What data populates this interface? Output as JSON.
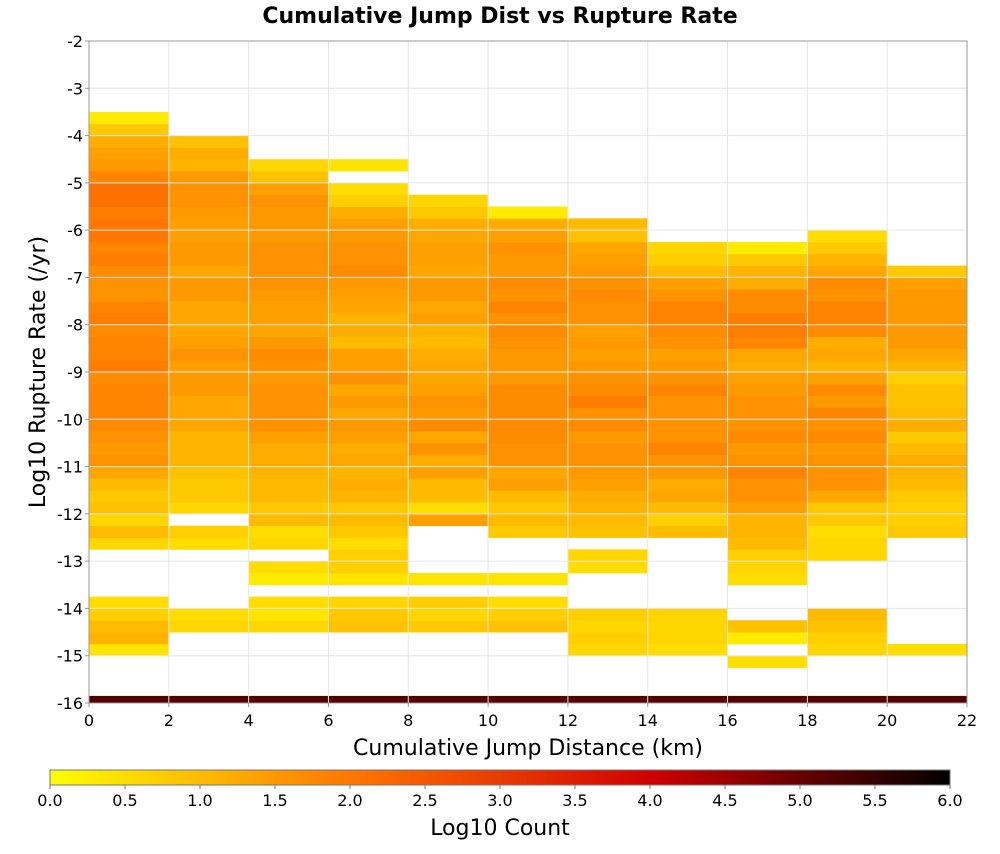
{
  "chart_data": {
    "type": "heatmap",
    "title": "Cumulative Jump Dist vs Rupture Rate",
    "xlabel": "Cumulative Jump Distance (km)",
    "ylabel": "Log10 Rupture Rate (/yr)",
    "xlim": [
      0,
      22
    ],
    "ylim": [
      -16,
      -2
    ],
    "x_ticks": [
      "0",
      "2",
      "4",
      "6",
      "8",
      "10",
      "12",
      "14",
      "16",
      "18",
      "20",
      "22"
    ],
    "y_ticks": [
      "-2",
      "-3",
      "-4",
      "-5",
      "-6",
      "-7",
      "-8",
      "-9",
      "-10",
      "-11",
      "-12",
      "-13",
      "-14",
      "-15",
      "-16"
    ],
    "grid": true,
    "x_bin_width": 2,
    "y_bin_height": 0.25,
    "colorbar": {
      "label": "Log10 Count",
      "range": [
        0,
        6
      ],
      "ticks": [
        "0.0",
        "0.5",
        "1.0",
        "1.5",
        "2.0",
        "2.5",
        "3.0",
        "3.5",
        "4.0",
        "4.5",
        "5.0",
        "5.5",
        "6.0"
      ],
      "colors": [
        "#ffff00",
        "#ff7700",
        "#d00000",
        "#000000"
      ]
    },
    "columns": [
      {
        "x_start": 0,
        "y_start": -15.0,
        "values": [
          0.4,
          1.1,
          1.0,
          0.7,
          0.5,
          null,
          null,
          null,
          null,
          0.6,
          1.0,
          0.6,
          0.9,
          0.8,
          1.0,
          1.3,
          1.6,
          1.5,
          1.6,
          1.7,
          1.8,
          1.8,
          1.8,
          1.7,
          1.9,
          1.8,
          1.8,
          1.7,
          1.9,
          1.8,
          1.6,
          1.6,
          1.7,
          1.9,
          1.8,
          2.0,
          2.0,
          1.9,
          2.1,
          2.1,
          1.8,
          1.5,
          1.4,
          1.2,
          0.8,
          0.3
        ]
      },
      {
        "x_start": 2,
        "y_start": -14.5,
        "values": [
          0.6,
          0.5,
          null,
          null,
          null,
          null,
          null,
          0.5,
          0.7,
          null,
          0.6,
          0.8,
          0.8,
          0.9,
          1.1,
          1.1,
          1.1,
          1.3,
          1.3,
          1.3,
          1.5,
          1.5,
          1.4,
          1.6,
          1.4,
          1.3,
          1.3,
          1.3,
          1.5,
          1.5,
          1.3,
          1.5,
          1.5,
          1.4,
          1.4,
          1.5,
          1.6,
          1.6,
          1.5,
          1.1,
          1.2,
          0.9
        ]
      },
      {
        "x_start": 4,
        "y_start": -14.5,
        "values": [
          0.6,
          0.4,
          0.5,
          null,
          0.3,
          0.5,
          null,
          0.6,
          0.5,
          1.0,
          0.8,
          1.0,
          1.0,
          1.1,
          1.2,
          1.2,
          1.4,
          1.6,
          1.6,
          1.6,
          1.6,
          1.5,
          1.6,
          1.7,
          1.5,
          1.3,
          1.4,
          1.4,
          1.5,
          1.6,
          1.6,
          1.6,
          1.6,
          1.5,
          1.5,
          1.5,
          1.6,
          1.4,
          0.9,
          0.6
        ]
      },
      {
        "x_start": 6,
        "y_start": -14.5,
        "values": [
          0.9,
          0.8,
          0.6,
          null,
          0.4,
          0.7,
          0.7,
          0.5,
          0.8,
          1.0,
          0.8,
          1.1,
          1.2,
          1.1,
          1.3,
          1.2,
          1.4,
          1.5,
          1.3,
          1.5,
          1.3,
          1.6,
          1.4,
          1.4,
          1.0,
          1.2,
          1.1,
          1.3,
          1.4,
          1.5,
          1.7,
          1.6,
          1.6,
          1.5,
          1.4,
          1.2,
          0.7,
          0.5,
          null,
          0.4
        ]
      },
      {
        "x_start": 8,
        "y_start": -14.5,
        "values": [
          0.8,
          0.6,
          0.7,
          null,
          0.4,
          null,
          null,
          null,
          null,
          1.4,
          0.5,
          1.0,
          1.0,
          1.4,
          1.2,
          1.6,
          1.3,
          1.7,
          1.5,
          1.6,
          1.4,
          1.3,
          1.3,
          1.2,
          1.0,
          1.1,
          1.4,
          1.3,
          1.5,
          1.5,
          1.3,
          1.4,
          1.4,
          1.3,
          1.2,
          0.8,
          0.6
        ]
      },
      {
        "x_start": 10,
        "y_start": -14.5,
        "values": [
          0.9,
          0.7,
          0.5,
          null,
          0.4,
          null,
          null,
          null,
          0.8,
          1.0,
          0.8,
          1.0,
          1.4,
          1.3,
          1.6,
          1.6,
          1.7,
          1.7,
          1.7,
          1.7,
          1.7,
          1.5,
          1.5,
          1.5,
          1.6,
          1.7,
          1.6,
          1.8,
          1.6,
          1.7,
          1.5,
          1.5,
          1.6,
          1.4,
          1.2,
          0.3
        ]
      },
      {
        "x_start": 12,
        "y_start": -15.0,
        "values": [
          0.6,
          0.7,
          0.6,
          0.7,
          null,
          null,
          null,
          0.5,
          0.6,
          null,
          0.9,
          1.0,
          1.1,
          1.2,
          1.4,
          1.5,
          1.6,
          1.6,
          1.5,
          1.7,
          1.6,
          1.9,
          1.7,
          1.6,
          1.5,
          1.4,
          1.5,
          1.4,
          1.6,
          1.6,
          1.7,
          1.6,
          1.5,
          1.4,
          1.3,
          0.9,
          1.0
        ]
      },
      {
        "x_start": 14,
        "y_start": -15.0,
        "values": [
          0.5,
          0.6,
          0.6,
          0.6,
          null,
          null,
          null,
          null,
          null,
          null,
          1.0,
          0.7,
          1.0,
          1.3,
          1.2,
          1.5,
          1.6,
          1.8,
          1.6,
          1.6,
          1.6,
          1.6,
          1.8,
          1.6,
          1.5,
          1.4,
          1.6,
          1.7,
          1.8,
          1.8,
          1.6,
          1.4,
          1.0,
          0.7,
          0.6
        ]
      },
      {
        "x_start": 16,
        "y_start": -15.25,
        "values": [
          0.5,
          null,
          0.3,
          0.9,
          null,
          null,
          null,
          0.5,
          0.6,
          0.7,
          1.0,
          1.1,
          1.1,
          1.4,
          1.6,
          1.6,
          1.8,
          1.6,
          1.5,
          1.7,
          1.6,
          1.6,
          1.6,
          1.5,
          1.4,
          1.2,
          1.3,
          1.8,
          1.9,
          1.9,
          1.7,
          1.7,
          1.2,
          1.1,
          0.8,
          0.3
        ]
      },
      {
        "x_start": 18,
        "y_start": -15.0,
        "values": [
          0.6,
          0.7,
          0.9,
          1.0,
          null,
          null,
          null,
          null,
          0.6,
          0.6,
          0.5,
          0.8,
          0.8,
          1.3,
          1.6,
          1.6,
          1.6,
          1.5,
          1.7,
          1.6,
          1.8,
          1.5,
          1.7,
          1.4,
          1.1,
          1.3,
          1.2,
          1.7,
          1.8,
          1.8,
          1.6,
          1.7,
          1.3,
          1.1,
          0.8,
          0.5
        ]
      },
      {
        "x_start": 20,
        "y_start": -15.0,
        "values": [
          0.5,
          null,
          null,
          null,
          null,
          null,
          null,
          null,
          null,
          null,
          0.8,
          0.7,
          0.7,
          0.8,
          1.0,
          1.1,
          1.2,
          1.0,
          0.8,
          1.2,
          1.0,
          0.9,
          0.9,
          0.7,
          1.1,
          1.3,
          1.5,
          1.5,
          1.5,
          1.5,
          1.5,
          1.4,
          0.8
        ]
      }
    ],
    "bottom_band": {
      "y_range": [
        -16.0,
        -15.85
      ],
      "value": 5.2
    }
  }
}
